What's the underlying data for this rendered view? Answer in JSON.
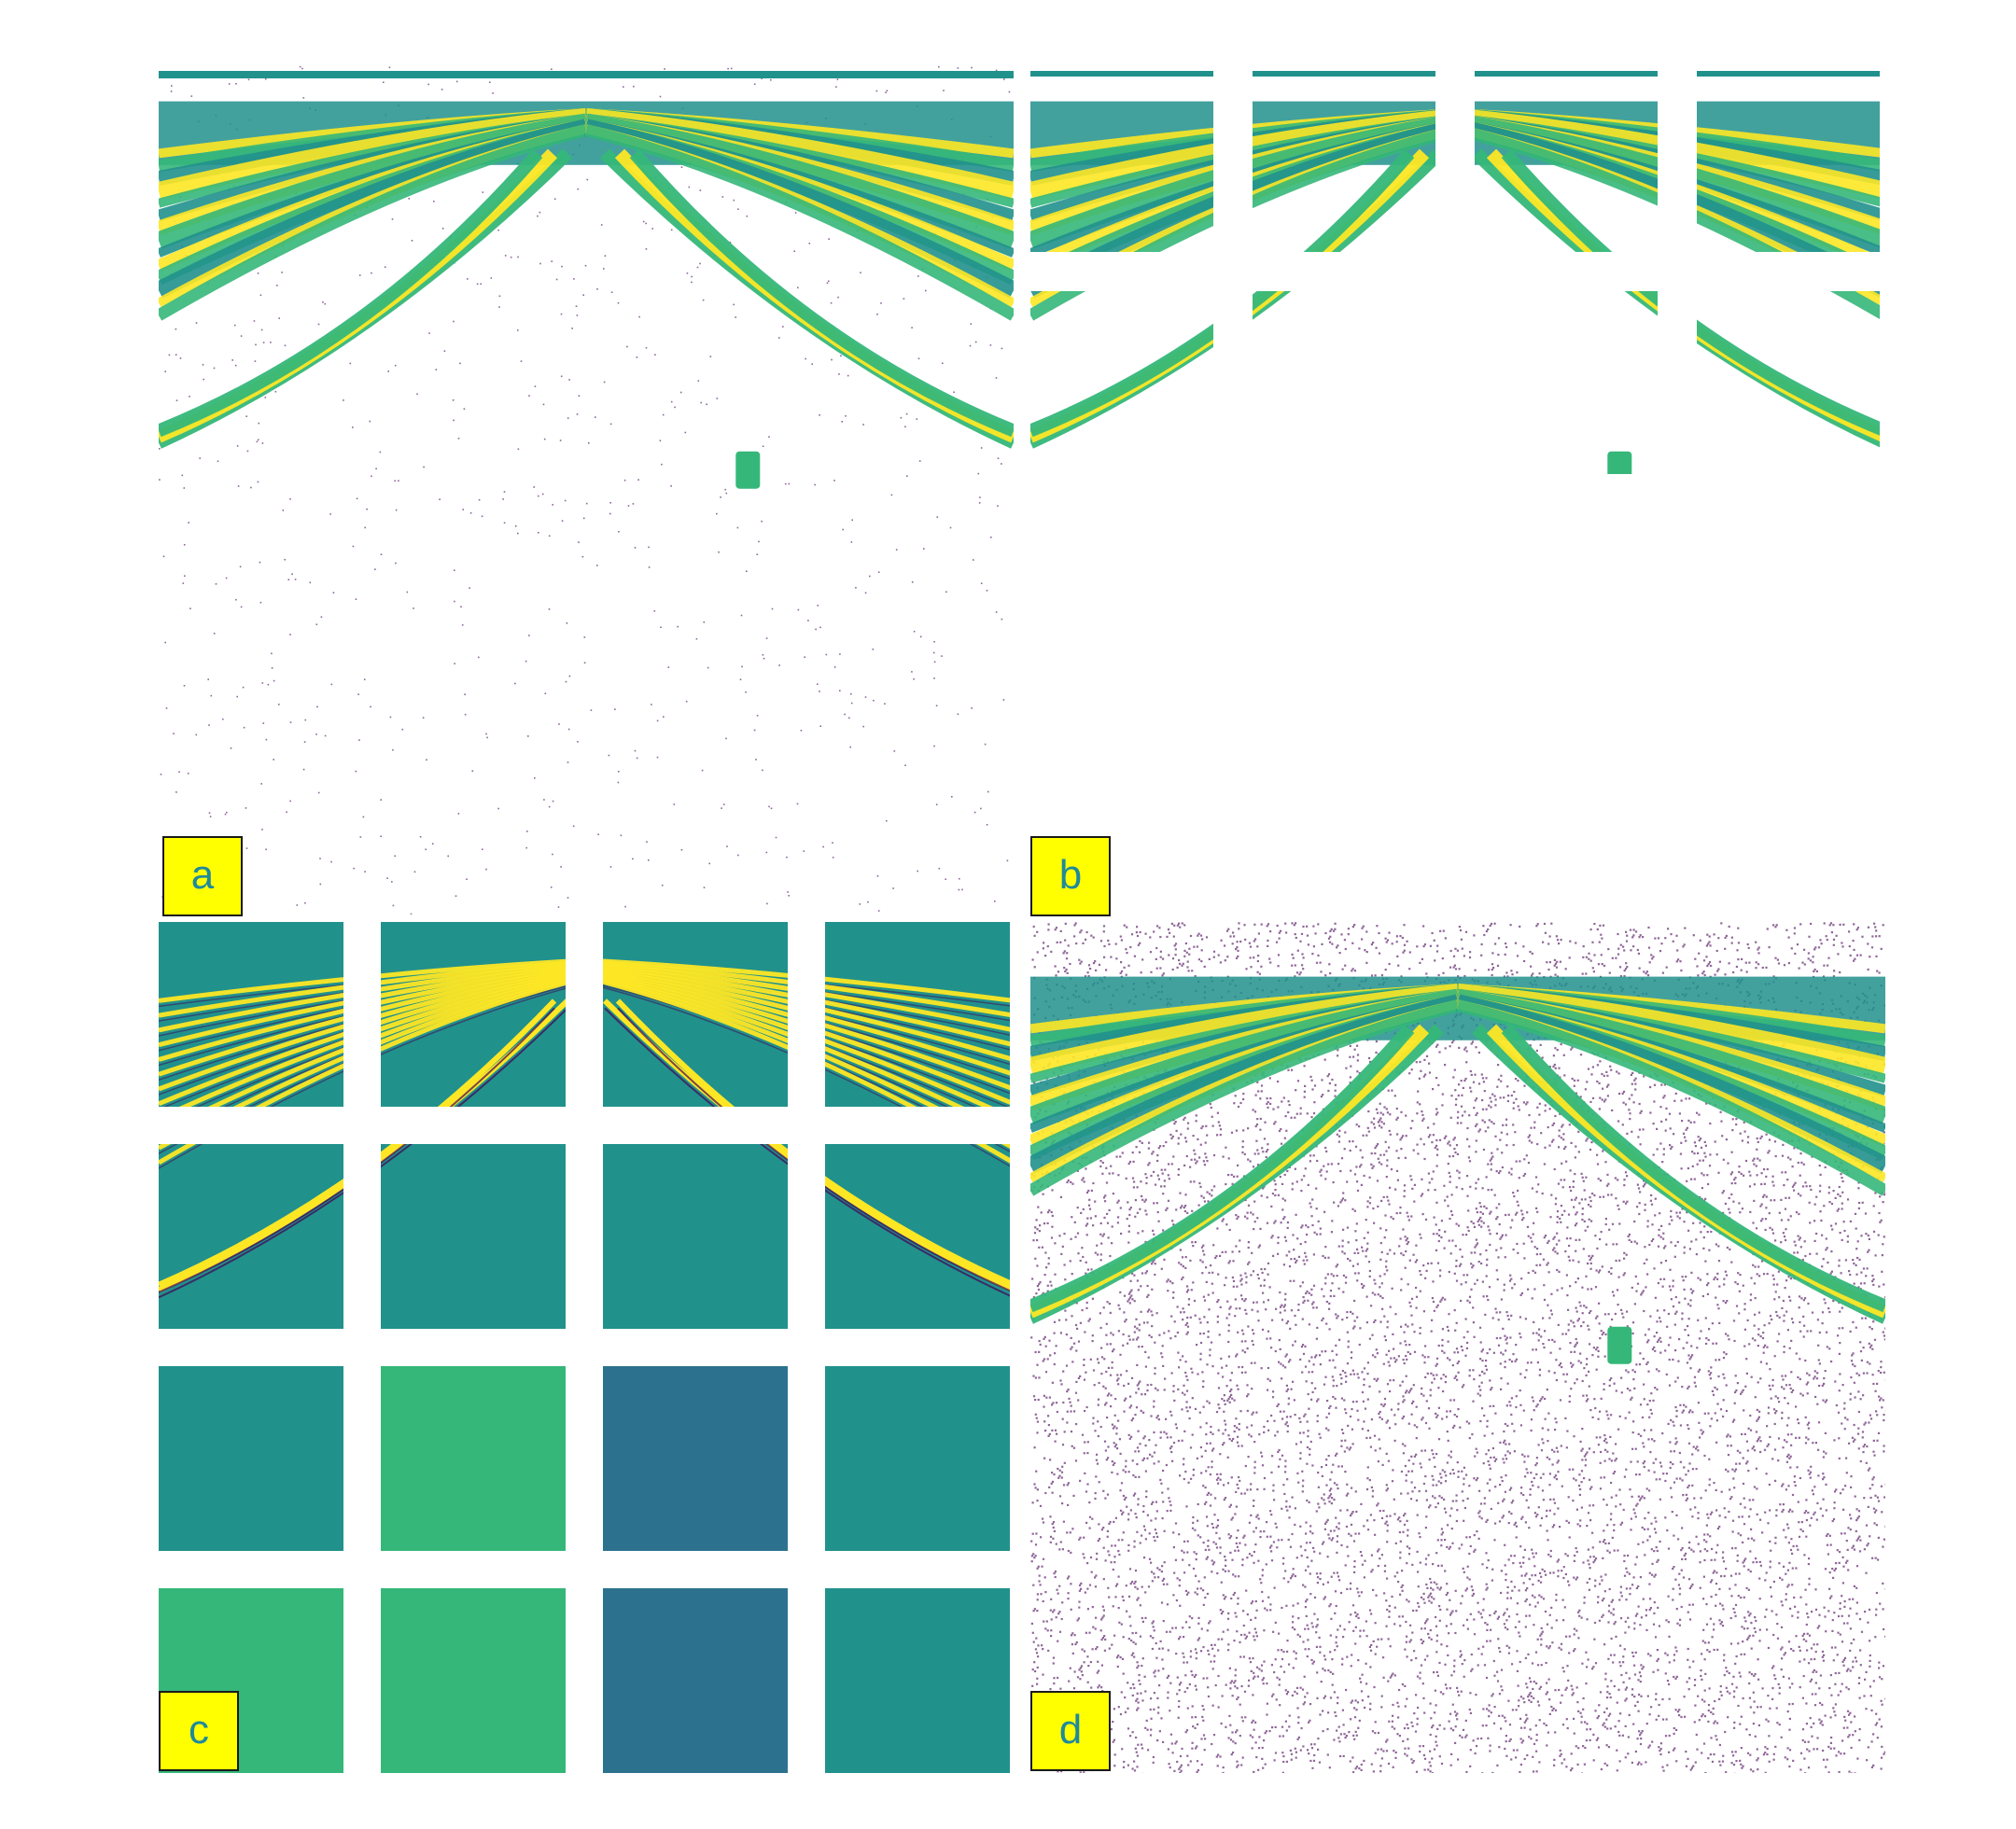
{
  "figure": {
    "panels": [
      {
        "id": "a",
        "label": "a"
      },
      {
        "id": "b",
        "label": "b"
      },
      {
        "id": "c",
        "label": "c"
      },
      {
        "id": "d",
        "label": "d"
      }
    ]
  },
  "colors": {
    "background": "#ffffff",
    "viridis_dark": "#440154",
    "viridis_teal": "#21918c",
    "viridis_green": "#35b779",
    "viridis_yellow": "#fde725",
    "viridis_blue": "#2c728e",
    "label_fill": "#ffff00",
    "label_text": "#1f8a9a"
  }
}
